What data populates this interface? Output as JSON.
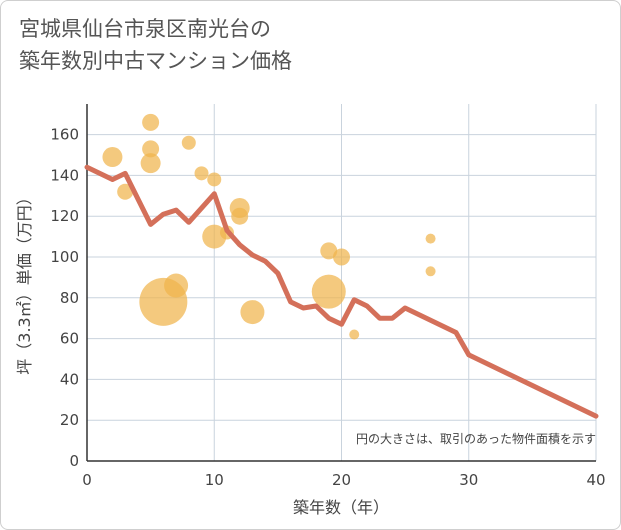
{
  "title_lines": [
    "宮城県仙台市泉区南光台の",
    "築年数別中古マンション価格"
  ],
  "colors": {
    "line": "#d4705a",
    "bubble": "#f0b44c",
    "grid": "#c9d3dd",
    "axis": "#333333"
  },
  "chart_data": {
    "type": "scatter",
    "title": "宮城県仙台市泉区南光台の築年数別中古マンション価格",
    "xlabel": "築年数（年）",
    "ylabel": "坪（3.3㎡）単価（万円）",
    "xlim": [
      0,
      40
    ],
    "ylim": [
      0,
      175
    ],
    "xticks": [
      0,
      10,
      20,
      30,
      40
    ],
    "yticks": [
      0,
      20,
      40,
      60,
      80,
      100,
      120,
      140,
      160
    ],
    "grid": true,
    "note": "円の大きさは、取引のあった物件面積を示す",
    "bubbles": [
      {
        "x": 2,
        "y": 149,
        "size": 10
      },
      {
        "x": 3,
        "y": 132,
        "size": 8
      },
      {
        "x": 5,
        "y": 166,
        "size": 8.5
      },
      {
        "x": 5,
        "y": 153,
        "size": 8.5
      },
      {
        "x": 5,
        "y": 146,
        "size": 10
      },
      {
        "x": 6,
        "y": 78,
        "size": 24
      },
      {
        "x": 7,
        "y": 86,
        "size": 12
      },
      {
        "x": 8,
        "y": 156,
        "size": 7
      },
      {
        "x": 9,
        "y": 141,
        "size": 7
      },
      {
        "x": 10,
        "y": 138,
        "size": 7
      },
      {
        "x": 10,
        "y": 110,
        "size": 12
      },
      {
        "x": 11,
        "y": 112,
        "size": 7
      },
      {
        "x": 12,
        "y": 124,
        "size": 10
      },
      {
        "x": 12,
        "y": 120,
        "size": 8.5
      },
      {
        "x": 13,
        "y": 73,
        "size": 12
      },
      {
        "x": 19,
        "y": 83,
        "size": 17
      },
      {
        "x": 19,
        "y": 103,
        "size": 8.5
      },
      {
        "x": 20,
        "y": 100,
        "size": 8.5
      },
      {
        "x": 21,
        "y": 62,
        "size": 5
      },
      {
        "x": 27,
        "y": 109,
        "size": 5
      },
      {
        "x": 27,
        "y": 93,
        "size": 5
      }
    ],
    "line": {
      "x": [
        0,
        2,
        3,
        5,
        6,
        7,
        8,
        10,
        11,
        12,
        13,
        14,
        15,
        16,
        17,
        18,
        19,
        20,
        21,
        22,
        23,
        24,
        25,
        29,
        30,
        40
      ],
      "y": [
        144,
        138,
        141,
        116,
        121,
        123,
        117,
        131,
        113,
        106,
        101,
        98,
        92,
        78,
        75,
        76,
        70,
        67,
        79,
        76,
        70,
        70,
        75,
        63,
        52,
        22
      ]
    }
  }
}
